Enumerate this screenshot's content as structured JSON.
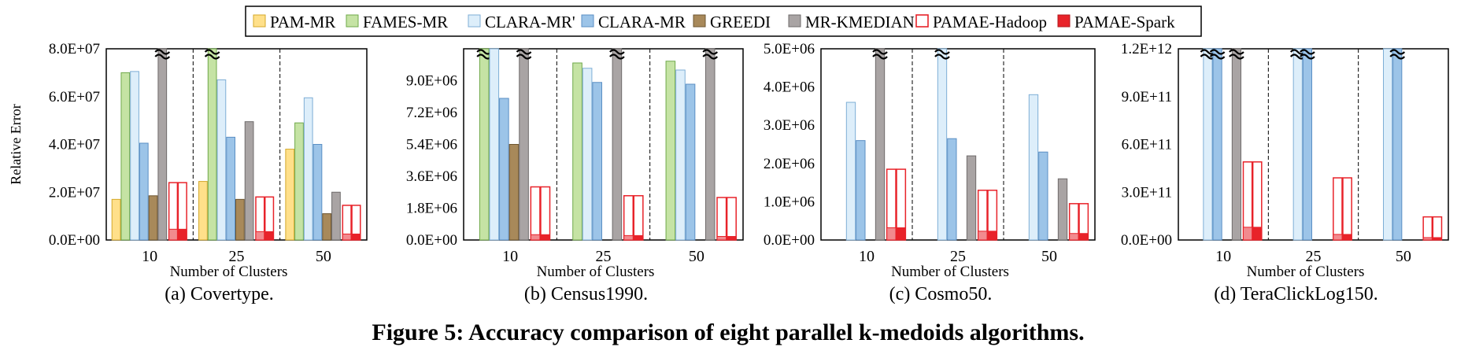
{
  "figure_caption": "Figure 5: Accuracy comparison of eight parallel k-medoids algorithms.",
  "legend": [
    {
      "name": "PAM-MR",
      "color": "#ffe08a",
      "stroke": "#d4a82a",
      "style": "solid"
    },
    {
      "name": "FAMES-MR",
      "color": "#c5e3a4",
      "stroke": "#6fa84a",
      "style": "solid"
    },
    {
      "name": "CLARA-MR'",
      "color": "#ddeefa",
      "stroke": "#7eaed6",
      "style": "solid"
    },
    {
      "name": "CLARA-MR",
      "color": "#9cc4e8",
      "stroke": "#5b8fc4",
      "style": "solid"
    },
    {
      "name": "GREEDI",
      "color": "#a8895a",
      "stroke": "#6e5630",
      "style": "solid"
    },
    {
      "name": "MR-KMEDIAN",
      "color": "#a9a4a4",
      "stroke": "#6f6b6b",
      "style": "solid"
    },
    {
      "name": "PAMAE-Hadoop",
      "color": "#ffffff",
      "stroke": "#e8232a",
      "style": "outline"
    },
    {
      "name": "PAMAE-Spark",
      "color": "#e8232a",
      "stroke": "#b0181d",
      "style": "solid"
    }
  ],
  "chart_data": [
    {
      "type": "bar",
      "subtitle": "(a) Covertype.",
      "ylabel": "Relative Error",
      "xlabel": "Number of Clusters",
      "categories": [
        "10",
        "25",
        "50"
      ],
      "ylim": [
        0,
        80000000
      ],
      "yticks": [
        "0.0E+00",
        "2.0E+07",
        "4.0E+07",
        "6.0E+07",
        "8.0E+07"
      ],
      "series": [
        {
          "name": "PAM-MR",
          "values": [
            17000000,
            24500000,
            38000000
          ]
        },
        {
          "name": "FAMES-MR",
          "values": [
            70000000,
            80000000,
            49000000
          ]
        },
        {
          "name": "CLARA-MR'",
          "values": [
            70500000,
            67000000,
            59500000
          ]
        },
        {
          "name": "CLARA-MR",
          "values": [
            40500000,
            43000000,
            40000000
          ]
        },
        {
          "name": "GREEDI",
          "values": [
            18500000,
            17000000,
            11000000
          ]
        },
        {
          "name": "MR-KMEDIAN",
          "values": [
            80000000,
            49500000,
            20000000
          ]
        },
        {
          "name": "PAMAE-Hadoop",
          "values": [
            24000000,
            18000000,
            14500000
          ]
        },
        {
          "name": "PAMAE-Spark",
          "values": [
            24000000,
            18000000,
            14500000
          ]
        }
      ],
      "phase1_fill": [
        4500000,
        3500000,
        2500000
      ],
      "breaks": [
        [
          "FAMES-MR",
          "25"
        ],
        [
          "MR-KMEDIAN",
          "10"
        ]
      ]
    },
    {
      "type": "bar",
      "subtitle": "(b) Census1990.",
      "xlabel": "Number of Clusters",
      "categories": [
        "10",
        "25",
        "50"
      ],
      "ylim": [
        0,
        10800000
      ],
      "yticks": [
        "0.0E+00",
        "1.8E+06",
        "3.6E+06",
        "5.4E+06",
        "7.2E+06",
        "9.0E+06"
      ],
      "series": [
        {
          "name": "PAM-MR",
          "values": [
            0,
            0,
            0
          ]
        },
        {
          "name": "FAMES-MR",
          "values": [
            10800000,
            10000000,
            10100000
          ]
        },
        {
          "name": "CLARA-MR'",
          "values": [
            10800000,
            9700000,
            9600000
          ]
        },
        {
          "name": "CLARA-MR",
          "values": [
            8000000,
            8900000,
            8800000
          ]
        },
        {
          "name": "GREEDI",
          "values": [
            5400000,
            0,
            0
          ]
        },
        {
          "name": "MR-KMEDIAN",
          "values": [
            10800000,
            10800000,
            10800000
          ]
        },
        {
          "name": "PAMAE-Hadoop",
          "values": [
            3000000,
            2500000,
            2400000
          ]
        },
        {
          "name": "PAMAE-Spark",
          "values": [
            3000000,
            2500000,
            2400000
          ]
        }
      ],
      "phase1_fill": [
        300000,
        250000,
        200000
      ],
      "breaks": [
        [
          "FAMES-MR",
          "10"
        ],
        [
          "MR-KMEDIAN",
          "10"
        ],
        [
          "MR-KMEDIAN",
          "25"
        ],
        [
          "MR-KMEDIAN",
          "50"
        ]
      ]
    },
    {
      "type": "bar",
      "subtitle": "(c) Cosmo50.",
      "xlabel": "Number of Clusters",
      "categories": [
        "10",
        "25",
        "50"
      ],
      "ylim": [
        0,
        5000000
      ],
      "yticks": [
        "0.0E+00",
        "1.0E+06",
        "2.0E+06",
        "3.0E+06",
        "4.0E+06",
        "5.0E+06"
      ],
      "series": [
        {
          "name": "PAM-MR",
          "values": [
            0,
            0,
            0
          ]
        },
        {
          "name": "FAMES-MR",
          "values": [
            0,
            0,
            0
          ]
        },
        {
          "name": "CLARA-MR'",
          "values": [
            3600000,
            5000000,
            3800000
          ]
        },
        {
          "name": "CLARA-MR",
          "values": [
            2600000,
            2650000,
            2300000
          ]
        },
        {
          "name": "GREEDI",
          "values": [
            0,
            0,
            0
          ]
        },
        {
          "name": "MR-KMEDIAN",
          "values": [
            5000000,
            2200000,
            1600000
          ]
        },
        {
          "name": "PAMAE-Hadoop",
          "values": [
            1850000,
            1300000,
            950000
          ]
        },
        {
          "name": "PAMAE-Spark",
          "values": [
            1850000,
            1300000,
            950000
          ]
        }
      ],
      "phase1_fill": [
        320000,
        230000,
        170000
      ],
      "breaks": [
        [
          "MR-KMEDIAN",
          "10"
        ],
        [
          "CLARA-MR'",
          "25"
        ]
      ]
    },
    {
      "type": "bar",
      "subtitle": "(d) TeraClickLog150.",
      "xlabel": "Number of Clusters",
      "categories": [
        "10",
        "25",
        "50"
      ],
      "ylim": [
        0,
        1200000000000
      ],
      "yticks": [
        "0.0E+00",
        "3.0E+11",
        "6.0E+11",
        "9.0E+11",
        "1.2E+12"
      ],
      "series": [
        {
          "name": "PAM-MR",
          "values": [
            0,
            0,
            0
          ]
        },
        {
          "name": "FAMES-MR",
          "values": [
            0,
            0,
            0
          ]
        },
        {
          "name": "CLARA-MR'",
          "values": [
            1200000000000,
            1200000000000,
            1200000000000
          ]
        },
        {
          "name": "CLARA-MR",
          "values": [
            1200000000000,
            1200000000000,
            1200000000000
          ]
        },
        {
          "name": "GREEDI",
          "values": [
            0,
            0,
            0
          ]
        },
        {
          "name": "MR-KMEDIAN",
          "values": [
            1200000000000,
            0,
            0
          ]
        },
        {
          "name": "PAMAE-Hadoop",
          "values": [
            490000000000,
            390000000000,
            145000000000
          ]
        },
        {
          "name": "PAMAE-Spark",
          "values": [
            490000000000,
            390000000000,
            145000000000
          ]
        }
      ],
      "phase1_fill": [
        80000000000,
        35000000000,
        15000000000
      ],
      "breaks": [
        [
          "CLARA-MR'",
          "10"
        ],
        [
          "CLARA-MR",
          "10"
        ],
        [
          "MR-KMEDIAN",
          "10"
        ],
        [
          "CLARA-MR'",
          "25"
        ],
        [
          "CLARA-MR",
          "25"
        ],
        [
          "CLARA-MR",
          "50"
        ]
      ]
    }
  ]
}
